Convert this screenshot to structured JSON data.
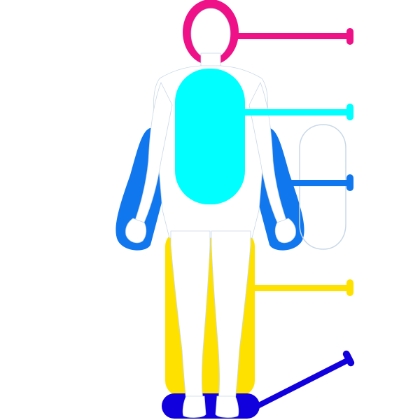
{
  "diagram": {
    "regions": [
      {
        "name": "head",
        "color": "#ee1188"
      },
      {
        "name": "torso",
        "color": "#00ffff"
      },
      {
        "name": "arms",
        "color": "#1177ee"
      },
      {
        "name": "legs",
        "color": "#ffe100"
      },
      {
        "name": "feet",
        "color": "#1100dd"
      }
    ],
    "figure_color": "#ffffff",
    "outline_color": "#c8d8e8",
    "background": "#ffffff"
  }
}
